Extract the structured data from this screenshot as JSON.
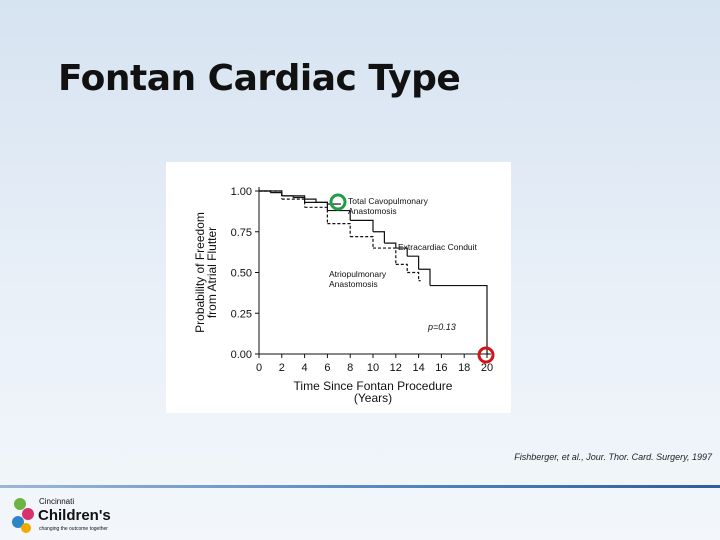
{
  "slide": {
    "title": "Fontan Cardiac Type",
    "citation": "Fishberger, et al., Jour. Thor. Card. Surgery, 1997"
  },
  "logo": {
    "line1": "Cincinnati",
    "line2": "Children's",
    "tagline": "changing the outcome together"
  },
  "chart_data": {
    "type": "line",
    "step": true,
    "ylabel": [
      "Probability of Freedom",
      "from Atrial Flutter"
    ],
    "xlabel": [
      "Time Since Fontan Procedure",
      "(Years)"
    ],
    "xlim": [
      0,
      20
    ],
    "xticks": [
      0,
      2,
      4,
      6,
      8,
      10,
      12,
      14,
      16,
      18,
      20
    ],
    "ylim": [
      0,
      1
    ],
    "yticks": [
      {
        "value": 0,
        "label": "0.00"
      },
      {
        "value": 0.25,
        "label": "0.25"
      },
      {
        "value": 0.5,
        "label": "0.50"
      },
      {
        "value": 0.75,
        "label": "0.75"
      },
      {
        "value": 1,
        "label": "1.00"
      }
    ],
    "annotation": "p=0.13",
    "series": [
      {
        "name": "Total Cavopulmonary Anastomosis",
        "color": "#111111",
        "style": "solid",
        "x": [
          0,
          1,
          2,
          3,
          4,
          5,
          6,
          7
        ],
        "values": [
          1.0,
          0.99,
          0.97,
          0.96,
          0.95,
          0.93,
          0.92,
          0.92
        ]
      },
      {
        "name": "Extracardiac Conduit",
        "color": "#111111",
        "style": "solid",
        "x": [
          0,
          2,
          4,
          6,
          8,
          10,
          11,
          12,
          13,
          14,
          15,
          20
        ],
        "values": [
          1.0,
          0.97,
          0.93,
          0.88,
          0.82,
          0.75,
          0.68,
          0.65,
          0.6,
          0.52,
          0.42,
          0
        ]
      },
      {
        "name": "Atriopulmonary Anastomosis",
        "color": "#111111",
        "style": "dashed",
        "x": [
          0,
          2,
          4,
          6,
          8,
          10,
          12,
          13,
          14
        ],
        "values": [
          1.0,
          0.95,
          0.9,
          0.8,
          0.72,
          0.65,
          0.55,
          0.5,
          0.45
        ]
      }
    ]
  }
}
